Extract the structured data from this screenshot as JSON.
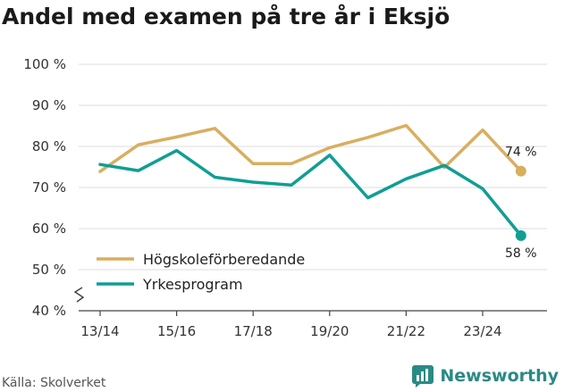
{
  "title": "Andel med examen på tre år i Eksjö",
  "source": "Källa: Skolverket",
  "brand": "Newsworthy",
  "colors": {
    "hogskole": "#d9ae5f",
    "yrkes": "#109e94",
    "grid": "#dcdcdc",
    "axis": "#444444",
    "brand": "#2a8a85"
  },
  "chart_data": {
    "type": "line",
    "title": "Andel med examen på tre år i Eksjö",
    "xlabel": "",
    "ylabel": "",
    "ylim": [
      40,
      100
    ],
    "yticks": [
      40,
      50,
      60,
      70,
      80,
      90,
      100
    ],
    "ytick_labels": [
      "40 %",
      "50 %",
      "60 %",
      "70 %",
      "80 %",
      "90 %",
      "100 %"
    ],
    "categories": [
      "13/14",
      "14/15",
      "15/16",
      "16/17",
      "17/18",
      "18/19",
      "19/20",
      "20/21",
      "21/22",
      "22/23",
      "23/24",
      "24/25"
    ],
    "xtick_labels": [
      "13/14",
      "15/16",
      "17/18",
      "19/20",
      "21/22",
      "23/24"
    ],
    "series": [
      {
        "name": "Högskoleförberedande",
        "key": "hogskole",
        "values": [
          73.9,
          80.4,
          82.3,
          84.4,
          75.8,
          75.8,
          79.7,
          82.2,
          85.1,
          74.9,
          84.0,
          74.0
        ],
        "end_label": "74 %"
      },
      {
        "name": "Yrkesprogram",
        "key": "yrkes",
        "values": [
          75.6,
          74.1,
          79.0,
          72.5,
          71.3,
          70.6,
          77.9,
          67.5,
          72.1,
          75.4,
          69.7,
          58.3
        ],
        "end_label": "58 %"
      }
    ],
    "legend_position": "bottom-left"
  }
}
